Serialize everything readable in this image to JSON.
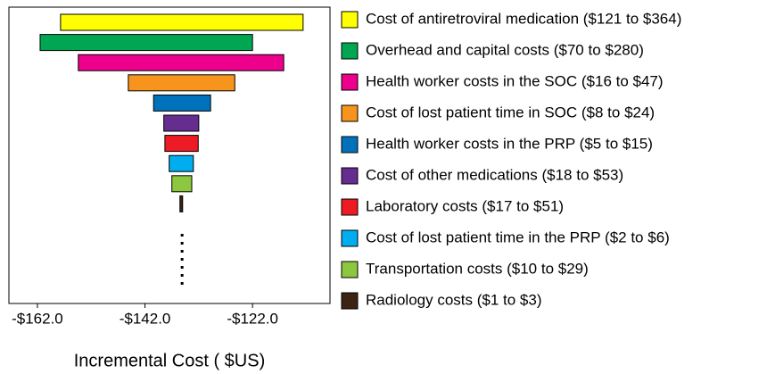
{
  "chart_data": {
    "type": "tornado",
    "xlabel": "Incremental Cost ( $US)",
    "xlim": [
      -167.3,
      -107.6
    ],
    "xticks": [
      {
        "value": -162,
        "label": "-$162.0"
      },
      {
        "value": -142,
        "label": "-$142.0"
      },
      {
        "value": -122,
        "label": "-$122.0"
      }
    ],
    "base_value": -135.1,
    "series": [
      {
        "name": "Cost of antiretroviral medication ($121 to $364)",
        "color": "#ffff00",
        "values": [
          -157.7,
          -112.6
        ]
      },
      {
        "name": "Overhead and capital costs ($70 to $280)",
        "color": "#00a651",
        "values": [
          -161.5,
          -122.0
        ]
      },
      {
        "name": "Health worker costs in the SOC ($16 to $47)",
        "color": "#ec008c",
        "values": [
          -154.4,
          -116.2
        ]
      },
      {
        "name": "Cost of lost patient time in SOC ($8 to $24)",
        "color": "#f7941d",
        "values": [
          -145.1,
          -125.3
        ]
      },
      {
        "name": "Health worker costs in the PRP ($5 to $15)",
        "color": "#0072bc",
        "values": [
          -140.4,
          -129.8
        ]
      },
      {
        "name": "Cost of other medications ($18 to $53)",
        "color": "#662d91",
        "values": [
          -138.5,
          -132.0
        ]
      },
      {
        "name": "Laboratory costs ($17 to $51)",
        "color": "#ed1c24",
        "values": [
          -138.3,
          -132.1
        ]
      },
      {
        "name": "Cost of lost patient time in the PRP ($2 to $6)",
        "color": "#00aeef",
        "values": [
          -137.5,
          -133.0
        ]
      },
      {
        "name": "Transportation costs ($10 to $29)",
        "color": "#8dc63f",
        "values": [
          -137.0,
          -133.3
        ]
      },
      {
        "name": "Radiology costs ($1 to $3)",
        "color": "#3c2415",
        "values": [
          -135.5,
          -135.0
        ]
      }
    ]
  }
}
